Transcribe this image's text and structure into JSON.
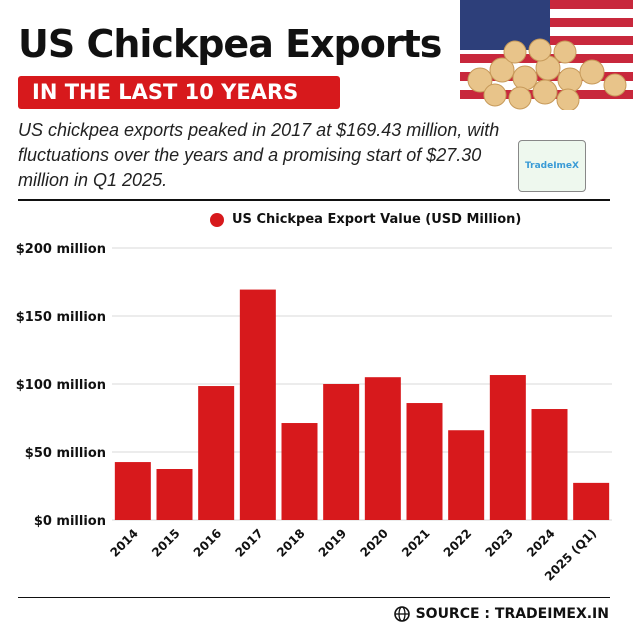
{
  "header": {
    "title": "US Chickpea Exports",
    "subtitle": "IN THE LAST 10 YEARS",
    "description": "US chickpea exports peaked in 2017 at $169.43 million, with fluctuations over the years and a promising start of $27.30 million in Q1 2025.",
    "logo_text": "TradeImeX"
  },
  "footer": {
    "source": "SOURCE : TRADEIMEX.IN",
    "icon": "globe-icon"
  },
  "colors": {
    "accent": "#d7191c",
    "bar": "#d7191c"
  },
  "chart_data": {
    "type": "bar",
    "legend": "US Chickpea Export Value (USD Million)",
    "legend_position": "top",
    "categories": [
      "2014",
      "2015",
      "2016",
      "2017",
      "2018",
      "2019",
      "2020",
      "2021",
      "2022",
      "2023",
      "2024",
      "2025 (Q1)"
    ],
    "series": [
      {
        "name": "US Chickpea Export Value (USD Million)",
        "values": [
          42.6,
          37.5,
          98.5,
          169.43,
          71.3,
          100,
          105,
          86,
          66,
          106.6,
          81.6,
          27.3
        ]
      }
    ],
    "yticks": [
      "$0 million",
      "$50 million",
      "$100 million",
      "$150 million",
      "$200 million"
    ],
    "ytick_values": [
      0,
      50,
      100,
      150,
      200
    ],
    "ylim": [
      0,
      200
    ],
    "grid": true
  }
}
